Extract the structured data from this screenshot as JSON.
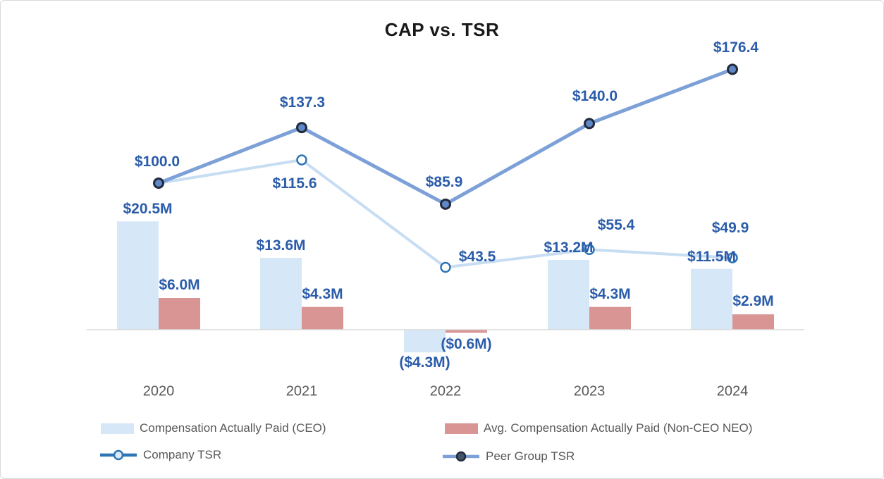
{
  "frame": {
    "background": "#FFFFFF",
    "border_color": "#D9D9D9"
  },
  "chart_data": {
    "type": "combo_bar_line",
    "title": "CAP vs. TSR",
    "categories": [
      "2020",
      "2021",
      "2022",
      "2023",
      "2024"
    ],
    "grid": false,
    "legend_position": "bottom",
    "data_label_color": "#2A5CAA",
    "axis": {
      "baseline_color": "#D9D9D9",
      "category_label_color": "#595959"
    },
    "series": [
      {
        "name": "Compensation Actually Paid (CEO)",
        "type": "bar",
        "unit": "$M",
        "values": [
          20.5,
          13.6,
          -4.3,
          13.2,
          11.5
        ],
        "labels": [
          "$20.5M",
          "$13.6M",
          "($4.3M)",
          "$13.2M",
          "$11.5M"
        ],
        "color": "#D6E8F8"
      },
      {
        "name": "Avg. Compensation Actually Paid (Non-CEO NEO)",
        "type": "bar",
        "unit": "$M",
        "values": [
          6.0,
          4.3,
          -0.6,
          4.3,
          2.9
        ],
        "labels": [
          "$6.0M",
          "$4.3M",
          "($0.6M)",
          "$4.3M",
          "$2.9M"
        ],
        "color": "#D99593"
      },
      {
        "name": "Company TSR",
        "type": "line",
        "values": [
          100.0,
          115.6,
          43.5,
          55.4,
          49.9
        ],
        "labels": [
          null,
          "$115.6",
          "$43.5",
          "$55.4",
          "$49.9"
        ],
        "color": "#C7DDF2",
        "marker_fill": "#FFFFFF",
        "marker_stroke": "#2E75B6",
        "legend_line_color": "#2E75B6",
        "legend_marker_fill": "#DCE9F7"
      },
      {
        "name": "Peer Group TSR",
        "type": "line",
        "values": [
          100.0,
          137.3,
          85.9,
          140.0,
          176.4
        ],
        "labels": [
          "$100.0",
          "$137.3",
          "$85.9",
          "$140.0",
          "$176.4"
        ],
        "color": "#7CA0D7",
        "marker_fill": "#5F88C6",
        "marker_stroke": "#232A3B",
        "legend_line_color": "#7CA0D7",
        "legend_marker_fill": "#44546A"
      }
    ]
  }
}
